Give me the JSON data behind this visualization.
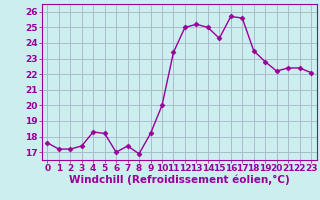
{
  "x": [
    0,
    1,
    2,
    3,
    4,
    5,
    6,
    7,
    8,
    9,
    10,
    11,
    12,
    13,
    14,
    15,
    16,
    17,
    18,
    19,
    20,
    21,
    22,
    23
  ],
  "y": [
    17.6,
    17.2,
    17.2,
    17.4,
    18.3,
    18.2,
    17.0,
    17.4,
    16.9,
    18.2,
    20.0,
    23.4,
    25.0,
    25.2,
    25.0,
    24.3,
    25.7,
    25.6,
    23.5,
    22.8,
    22.2,
    22.4,
    22.4,
    22.1
  ],
  "line_color": "#990099",
  "marker": "D",
  "marker_size": 2.5,
  "line_width": 1.0,
  "bg_color": "#cceeee",
  "grid_color": "#aabbcc",
  "xlabel": "Windchill (Refroidissement éolien,°C)",
  "xlabel_fontsize": 7.5,
  "tick_fontsize": 6.5,
  "ylim": [
    16.5,
    26.5
  ],
  "xlim": [
    -0.5,
    23.5
  ],
  "yticks": [
    17,
    18,
    19,
    20,
    21,
    22,
    23,
    24,
    25,
    26
  ],
  "xticks": [
    0,
    1,
    2,
    3,
    4,
    5,
    6,
    7,
    8,
    9,
    10,
    11,
    12,
    13,
    14,
    15,
    16,
    17,
    18,
    19,
    20,
    21,
    22,
    23
  ]
}
